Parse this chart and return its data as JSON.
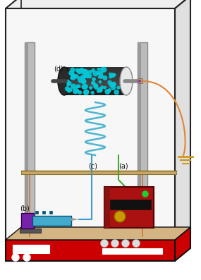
{
  "fig_width": 2.85,
  "fig_height": 3.97,
  "dpi": 100,
  "bg_color": "#ffffff",
  "label_a": "(a)",
  "label_b": "(b)",
  "label_c": "(c)",
  "label_d": "(d)",
  "font_size": 7
}
